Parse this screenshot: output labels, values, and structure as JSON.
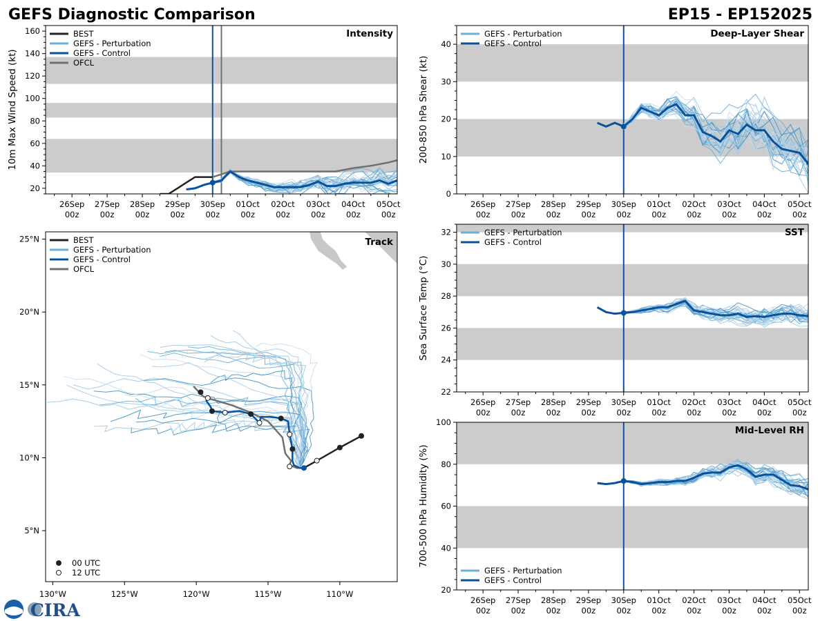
{
  "header": {
    "title": "GEFS Diagnostic Comparison",
    "storm_id": "EP15 - EP152025"
  },
  "logo": {
    "text": "CIRA"
  },
  "colors": {
    "best": "#222222",
    "perturbation": "#6baed6",
    "control": "#08519c",
    "ofcl": "#707070",
    "band": "#cccccc",
    "land": "#c8c8c8"
  },
  "chart_data": [
    {
      "id": "intensity",
      "type": "line",
      "title": "Intensity",
      "ylabel": "10m Max Wind Speed (kt)",
      "ylim": [
        15,
        165
      ],
      "yticks": [
        20,
        40,
        60,
        80,
        100,
        120,
        140,
        160
      ],
      "xlim": [
        -4.75,
        5.25
      ],
      "xticks": [
        {
          "t": -4,
          "day": "26Sep",
          "hour": "00z"
        },
        {
          "t": -3,
          "day": "27Sep",
          "hour": "00z"
        },
        {
          "t": -2,
          "day": "28Sep",
          "hour": "00z"
        },
        {
          "t": -1,
          "day": "29Sep",
          "hour": "00z"
        },
        {
          "t": 0,
          "day": "30Sep",
          "hour": "00z"
        },
        {
          "t": 1,
          "day": "01Oct",
          "hour": "00z"
        },
        {
          "t": 2,
          "day": "02Oct",
          "hour": "00z"
        },
        {
          "t": 3,
          "day": "03Oct",
          "hour": "00z"
        },
        {
          "t": 4,
          "day": "04Oct",
          "hour": "00z"
        },
        {
          "t": 5,
          "day": "05Oct",
          "hour": "00z"
        }
      ],
      "bands": [
        [
          34,
          64
        ],
        [
          83,
          96
        ],
        [
          113,
          137
        ]
      ],
      "legend": [
        "BEST",
        "GEFS - Perturbation",
        "GEFS - Control",
        "OFCL"
      ],
      "init_time": 0,
      "ofcl_time": 0.25,
      "series": [
        {
          "name": "BEST",
          "x": [
            -1.5,
            -1.25,
            -1.0,
            -0.75,
            -0.5,
            -0.25,
            0.0
          ],
          "values": [
            15,
            15,
            20,
            25,
            30,
            30,
            30
          ]
        },
        {
          "name": "OFCL",
          "x": [
            0.0,
            0.5,
            1.0,
            1.5,
            2.0,
            2.5,
            3.0,
            3.5,
            4.0,
            4.5,
            5.0,
            5.25
          ],
          "values": [
            30,
            35,
            35,
            35,
            35,
            35,
            35,
            35,
            38,
            40,
            43,
            45
          ]
        },
        {
          "name": "GEFS - Control",
          "x": [
            -0.75,
            -0.5,
            -0.25,
            0.0,
            0.25,
            0.5,
            0.75,
            1.0,
            1.25,
            1.5,
            1.75,
            2.0,
            2.25,
            2.5,
            2.75,
            3.0,
            3.25,
            3.5,
            3.75,
            4.0,
            4.25,
            4.5,
            4.75,
            5.0,
            5.25
          ],
          "values": [
            19,
            20,
            23,
            25,
            27,
            35,
            30,
            27,
            25,
            23,
            21,
            21,
            21,
            21,
            23,
            26,
            22,
            22,
            24,
            25,
            25,
            25,
            27,
            24,
            27
          ]
        }
      ]
    },
    {
      "id": "shear",
      "type": "line",
      "title": "Deep-Layer Shear",
      "ylabel": "200-850 hPa Shear (kt)",
      "ylim": [
        0,
        45
      ],
      "yticks": [
        0,
        10,
        20,
        30,
        40
      ],
      "xlim": [
        -4.75,
        5.25
      ],
      "xticks_ref": "intensity",
      "bands": [
        [
          10,
          20
        ],
        [
          30,
          40
        ]
      ],
      "legend": [
        "GEFS - Perturbation",
        "GEFS - Control"
      ],
      "init_time": 0,
      "series": [
        {
          "name": "GEFS - Control",
          "x": [
            -0.75,
            -0.5,
            -0.25,
            0.0,
            0.25,
            0.5,
            0.75,
            1.0,
            1.25,
            1.5,
            1.75,
            2.0,
            2.25,
            2.5,
            2.75,
            3.0,
            3.25,
            3.5,
            3.75,
            4.0,
            4.25,
            4.5,
            4.75,
            5.0,
            5.25
          ],
          "values": [
            19,
            18,
            19,
            18,
            20,
            23,
            22,
            21,
            23,
            24,
            21,
            21,
            16.5,
            15.5,
            14,
            17,
            16,
            18.5,
            17,
            17,
            14,
            12,
            11.5,
            11,
            8
          ]
        }
      ]
    },
    {
      "id": "track",
      "type": "scatter",
      "title": "Track",
      "xlim": [
        -130.5,
        -106
      ],
      "ylim": [
        1.5,
        25.5
      ],
      "xticks": [
        {
          "v": -130,
          "label": "130°W"
        },
        {
          "v": -125,
          "label": "125°W"
        },
        {
          "v": -120,
          "label": "120°W"
        },
        {
          "v": -115,
          "label": "115°W"
        },
        {
          "v": -110,
          "label": "110°W"
        }
      ],
      "yticks": [
        {
          "v": 5,
          "label": "5°N"
        },
        {
          "v": 10,
          "label": "10°N"
        },
        {
          "v": 15,
          "label": "15°N"
        },
        {
          "v": 20,
          "label": "20°N"
        },
        {
          "v": 25,
          "label": "25°N"
        }
      ],
      "legend": [
        "BEST",
        "GEFS - Perturbation",
        "GEFS - Control",
        "OFCL"
      ],
      "marker_legend": [
        "00 UTC",
        "12 UTC"
      ],
      "best": {
        "lon": [
          -108.5,
          -110.0,
          -111.6,
          -112.5
        ],
        "lat": [
          11.5,
          10.7,
          9.8,
          9.3
        ],
        "markers": [
          "00",
          "00",
          "12",
          "none"
        ]
      },
      "ofcl": {
        "lon": [
          -120.2,
          -119.5,
          -118.9,
          -117.5,
          -116.2,
          -115.0,
          -114.0,
          -113.8,
          -113.4,
          -113.5,
          -113.0,
          -112.8
        ],
        "lat": [
          14.9,
          14.2,
          14.0,
          13.6,
          13.1,
          12.5,
          11.4,
          10.3,
          9.8,
          9.5,
          9.3,
          9.3
        ]
      },
      "control": {
        "lon": [
          -112.5,
          -112.8,
          -113.2,
          -113.3,
          -113.3,
          -113.5,
          -113.6,
          -114.1,
          -114.8,
          -115.5,
          -115.6,
          -116.2,
          -117.0,
          -118.0,
          -118.9,
          -119.0,
          -119.3,
          -119.2
        ],
        "lat": [
          9.3,
          9.3,
          9.5,
          9.8,
          10.6,
          11.6,
          12.5,
          12.7,
          12.8,
          12.8,
          12.4,
          13.0,
          13.2,
          13.1,
          13.2,
          13.5,
          13.9,
          14.1
        ],
        "markers_00": [
          [
            -113.3,
            10.6
          ],
          [
            -114.1,
            12.7
          ],
          [
            -116.2,
            13.0
          ],
          [
            -118.9,
            13.2
          ],
          [
            -119.7,
            14.5
          ]
        ],
        "markers_12": [
          [
            -113.5,
            11.6
          ],
          [
            -115.6,
            12.4
          ],
          [
            -118.0,
            13.1
          ],
          [
            -119.2,
            14.1
          ],
          [
            -113.5,
            9.4
          ]
        ]
      }
    },
    {
      "id": "sst",
      "type": "line",
      "title": "SST",
      "ylabel": "Sea Surface Temp (°C)",
      "ylim": [
        22,
        32.5
      ],
      "yticks": [
        22,
        24,
        26,
        28,
        30,
        32
      ],
      "xlim": [
        -4.75,
        5.25
      ],
      "xticks_ref": "intensity",
      "bands": [
        [
          24,
          26
        ],
        [
          28,
          30
        ],
        [
          32,
          32.5
        ]
      ],
      "legend": [
        "GEFS - Perturbation",
        "GEFS - Control"
      ],
      "init_time": 0,
      "series": [
        {
          "name": "GEFS - Control",
          "x": [
            -0.75,
            -0.5,
            -0.25,
            0.0,
            0.25,
            0.5,
            0.75,
            1.0,
            1.25,
            1.5,
            1.75,
            2.0,
            2.25,
            2.5,
            2.75,
            3.0,
            3.25,
            3.5,
            3.75,
            4.0,
            4.25,
            4.5,
            4.75,
            5.0,
            5.25
          ],
          "values": [
            27.3,
            27.0,
            26.9,
            26.95,
            27.0,
            27.1,
            27.2,
            27.3,
            27.3,
            27.5,
            27.7,
            27.1,
            27.0,
            26.9,
            26.8,
            26.8,
            26.9,
            26.7,
            26.75,
            26.7,
            26.8,
            26.9,
            26.9,
            26.8,
            26.75
          ]
        }
      ]
    },
    {
      "id": "rh",
      "type": "line",
      "title": "Mid-Level RH",
      "ylabel": "700-500 hPa Humidity (%)",
      "ylim": [
        20,
        100
      ],
      "yticks": [
        20,
        40,
        60,
        80,
        100
      ],
      "xlim": [
        -4.75,
        5.25
      ],
      "xticks_ref": "intensity",
      "bands": [
        [
          40,
          60
        ],
        [
          80,
          100
        ]
      ],
      "legend": [
        "GEFS - Perturbation",
        "GEFS - Control"
      ],
      "init_time": 0,
      "series": [
        {
          "name": "GEFS - Control",
          "x": [
            -0.75,
            -0.5,
            -0.25,
            0.0,
            0.25,
            0.5,
            0.75,
            1.0,
            1.25,
            1.5,
            1.75,
            2.0,
            2.25,
            2.5,
            2.75,
            3.0,
            3.25,
            3.5,
            3.75,
            4.0,
            4.25,
            4.5,
            4.75,
            5.0,
            5.25
          ],
          "values": [
            71,
            70.5,
            71,
            72,
            71.5,
            70.5,
            71,
            71.5,
            71.5,
            72,
            72,
            73.5,
            75.5,
            76,
            76,
            78.5,
            79.5,
            77.5,
            74,
            75,
            75,
            72.5,
            70,
            69.5,
            68
          ]
        }
      ]
    }
  ]
}
